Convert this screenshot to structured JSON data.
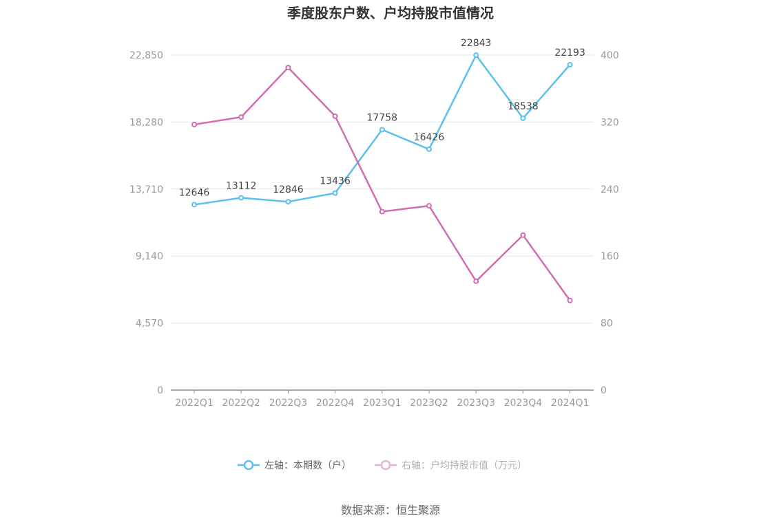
{
  "chart_data": {
    "type": "line",
    "title": "季度股东户数、户均持股市值情况",
    "categories": [
      "2022Q1",
      "2022Q2",
      "2022Q3",
      "2022Q4",
      "2023Q1",
      "2023Q2",
      "2023Q3",
      "2023Q4",
      "2024Q1"
    ],
    "left_axis": {
      "ticks": [
        "0",
        "4,570",
        "9,140",
        "13,710",
        "18,280",
        "22,850"
      ],
      "ylim": [
        0,
        22850
      ]
    },
    "right_axis": {
      "ticks": [
        "0",
        "80",
        "160",
        "240",
        "320",
        "400"
      ],
      "ylim": [
        0,
        400
      ]
    },
    "series": [
      {
        "name": "左轴：本期数（户）",
        "axis": "left",
        "color": "#5bc0eb",
        "values": [
          12646,
          13112,
          12846,
          13436,
          17758,
          16426,
          22843,
          18538,
          22193
        ],
        "labels": [
          "12646",
          "13112",
          "12846",
          "13436",
          "17758",
          "16426",
          "22843",
          "18538",
          "22193"
        ]
      },
      {
        "name": "右轴：户均持股市值（万元）",
        "axis": "right",
        "color": "#d26baf",
        "values": [
          317,
          326,
          385,
          327,
          213,
          220,
          130,
          185,
          107
        ]
      }
    ],
    "grid": true,
    "legend_position": "bottom"
  },
  "source": "数据来源：恒生聚源"
}
